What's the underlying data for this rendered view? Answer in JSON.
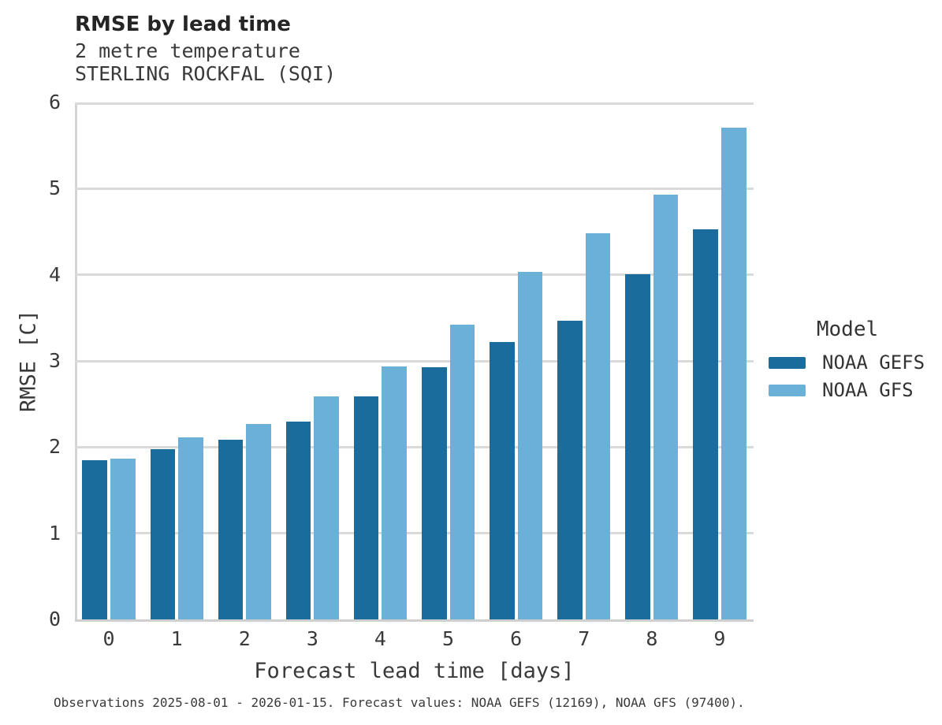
{
  "header": {
    "title": "RMSE by lead time",
    "subtitle_lines": [
      "2 metre temperature",
      "STERLING ROCKFAL (SQI)"
    ]
  },
  "chart_data": {
    "type": "bar",
    "title": "RMSE by lead time",
    "subtitle": [
      "2 metre temperature",
      "STERLING ROCKFAL (SQI)"
    ],
    "xlabel": "Forecast lead time [days]",
    "ylabel": "RMSE [C]",
    "categories": [
      "0",
      "1",
      "2",
      "3",
      "4",
      "5",
      "6",
      "7",
      "8",
      "9"
    ],
    "series": [
      {
        "name": "NOAA GEFS",
        "color": "#1a6c9c",
        "values": [
          1.85,
          1.98,
          2.09,
          2.3,
          2.59,
          2.93,
          3.22,
          3.47,
          4.01,
          4.53
        ]
      },
      {
        "name": "NOAA GFS",
        "color": "#6bb0d7",
        "values": [
          1.87,
          2.11,
          2.27,
          2.59,
          2.94,
          3.42,
          4.03,
          4.48,
          4.93,
          5.71
        ]
      }
    ],
    "ylim": [
      0,
      6
    ],
    "yticks": [
      0,
      1,
      2,
      3,
      4,
      5,
      6
    ],
    "grid": true,
    "legend": {
      "title": "Model",
      "position": "right"
    },
    "colors": {
      "grid": "#dadada",
      "spine": "#d4d4d4",
      "text": "#3a3a3a"
    }
  },
  "caption": "Observations 2025-08-01 - 2026-01-15. Forecast values: NOAA GEFS (12169), NOAA GFS (97400)."
}
